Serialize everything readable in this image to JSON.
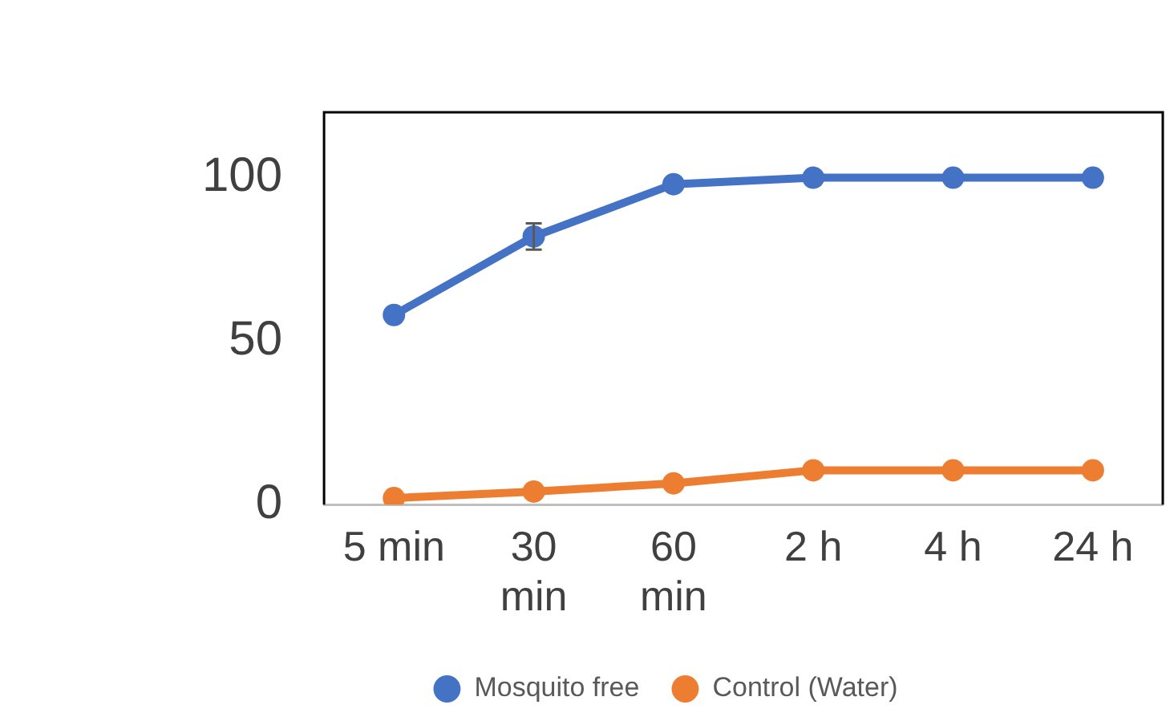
{
  "chart_data": {
    "type": "line",
    "categories": [
      "5 min",
      "30 min",
      "60 min",
      "2 h",
      "4 h",
      "24 h"
    ],
    "series": [
      {
        "name": "Mosquito free",
        "color": "#4472c4",
        "values": [
          58,
          82,
          98,
          100,
          100,
          100
        ],
        "errors": [
          null,
          4,
          null,
          null,
          null,
          null
        ]
      },
      {
        "name": "Control (Water)",
        "color": "#ed7d31",
        "values": [
          2,
          4,
          6.5,
          10.5,
          10.5,
          10.5
        ]
      }
    ],
    "ylim": [
      0,
      120
    ],
    "yticks": [
      0,
      50,
      100
    ],
    "grid": false,
    "legend": "bottom",
    "marker": "circle",
    "line_style": "solid"
  }
}
